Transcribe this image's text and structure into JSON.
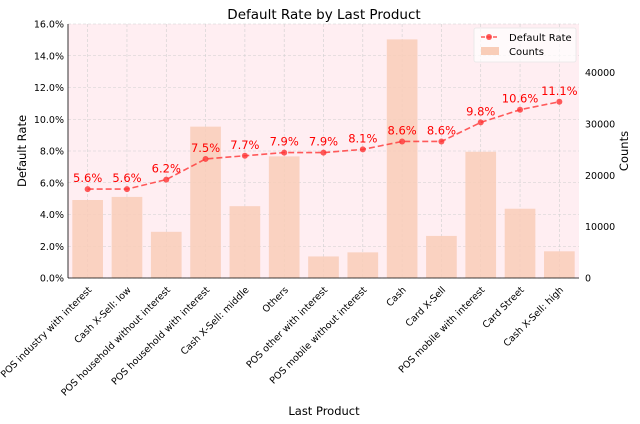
{
  "chart_data": {
    "type": "bar+line",
    "title": "Default Rate by Last Product",
    "xlabel": "Last Product",
    "ylabel_left": "Default Rate",
    "ylabel_right": "Counts",
    "categories": [
      "POS industry with interest",
      "Cash X-Sell: low",
      "POS household without interest",
      "POS household with interest",
      "Cash X-Sell: middle",
      "Others",
      "POS other with interest",
      "POS mobile without interest",
      "Cash",
      "Card X-Sell",
      "POS mobile with interest",
      "Card Street",
      "Cash X-Sell: high"
    ],
    "series": [
      {
        "name": "Default Rate",
        "kind": "line",
        "axis": "left",
        "color": "#ff3333",
        "values": [
          0.056,
          0.056,
          0.062,
          0.075,
          0.077,
          0.079,
          0.079,
          0.081,
          0.086,
          0.086,
          0.098,
          0.106,
          0.111
        ],
        "labels": [
          "5.6%",
          "5.6%",
          "6.2%",
          "7.5%",
          "7.7%",
          "7.9%",
          "7.9%",
          "8.1%",
          "8.6%",
          "8.6%",
          "9.8%",
          "10.6%",
          "11.1%"
        ]
      },
      {
        "name": "Counts",
        "kind": "bar",
        "axis": "right",
        "color": "#f9cdb8",
        "values": [
          15200,
          15800,
          9000,
          29500,
          14000,
          23700,
          4200,
          5000,
          46500,
          8200,
          24600,
          13500,
          5200
        ]
      }
    ],
    "ylim_left": [
      0,
      0.16
    ],
    "yticks_left": [
      "0.0%",
      "2.0%",
      "4.0%",
      "6.0%",
      "8.0%",
      "10.0%",
      "12.0%",
      "14.0%",
      "16.0%"
    ],
    "ylim_right": [
      0,
      49500
    ],
    "yticks_right_values": [
      0,
      10000,
      20000,
      30000,
      40000
    ],
    "yticks_right": [
      "0",
      "10000",
      "20000",
      "30000",
      "40000"
    ],
    "grid": true,
    "legend_position": "top-right",
    "colors": {
      "plot_background": "#ffeef2",
      "line": "#ff3333",
      "bar": "#f9cdb8",
      "label": "#ff0000"
    }
  }
}
